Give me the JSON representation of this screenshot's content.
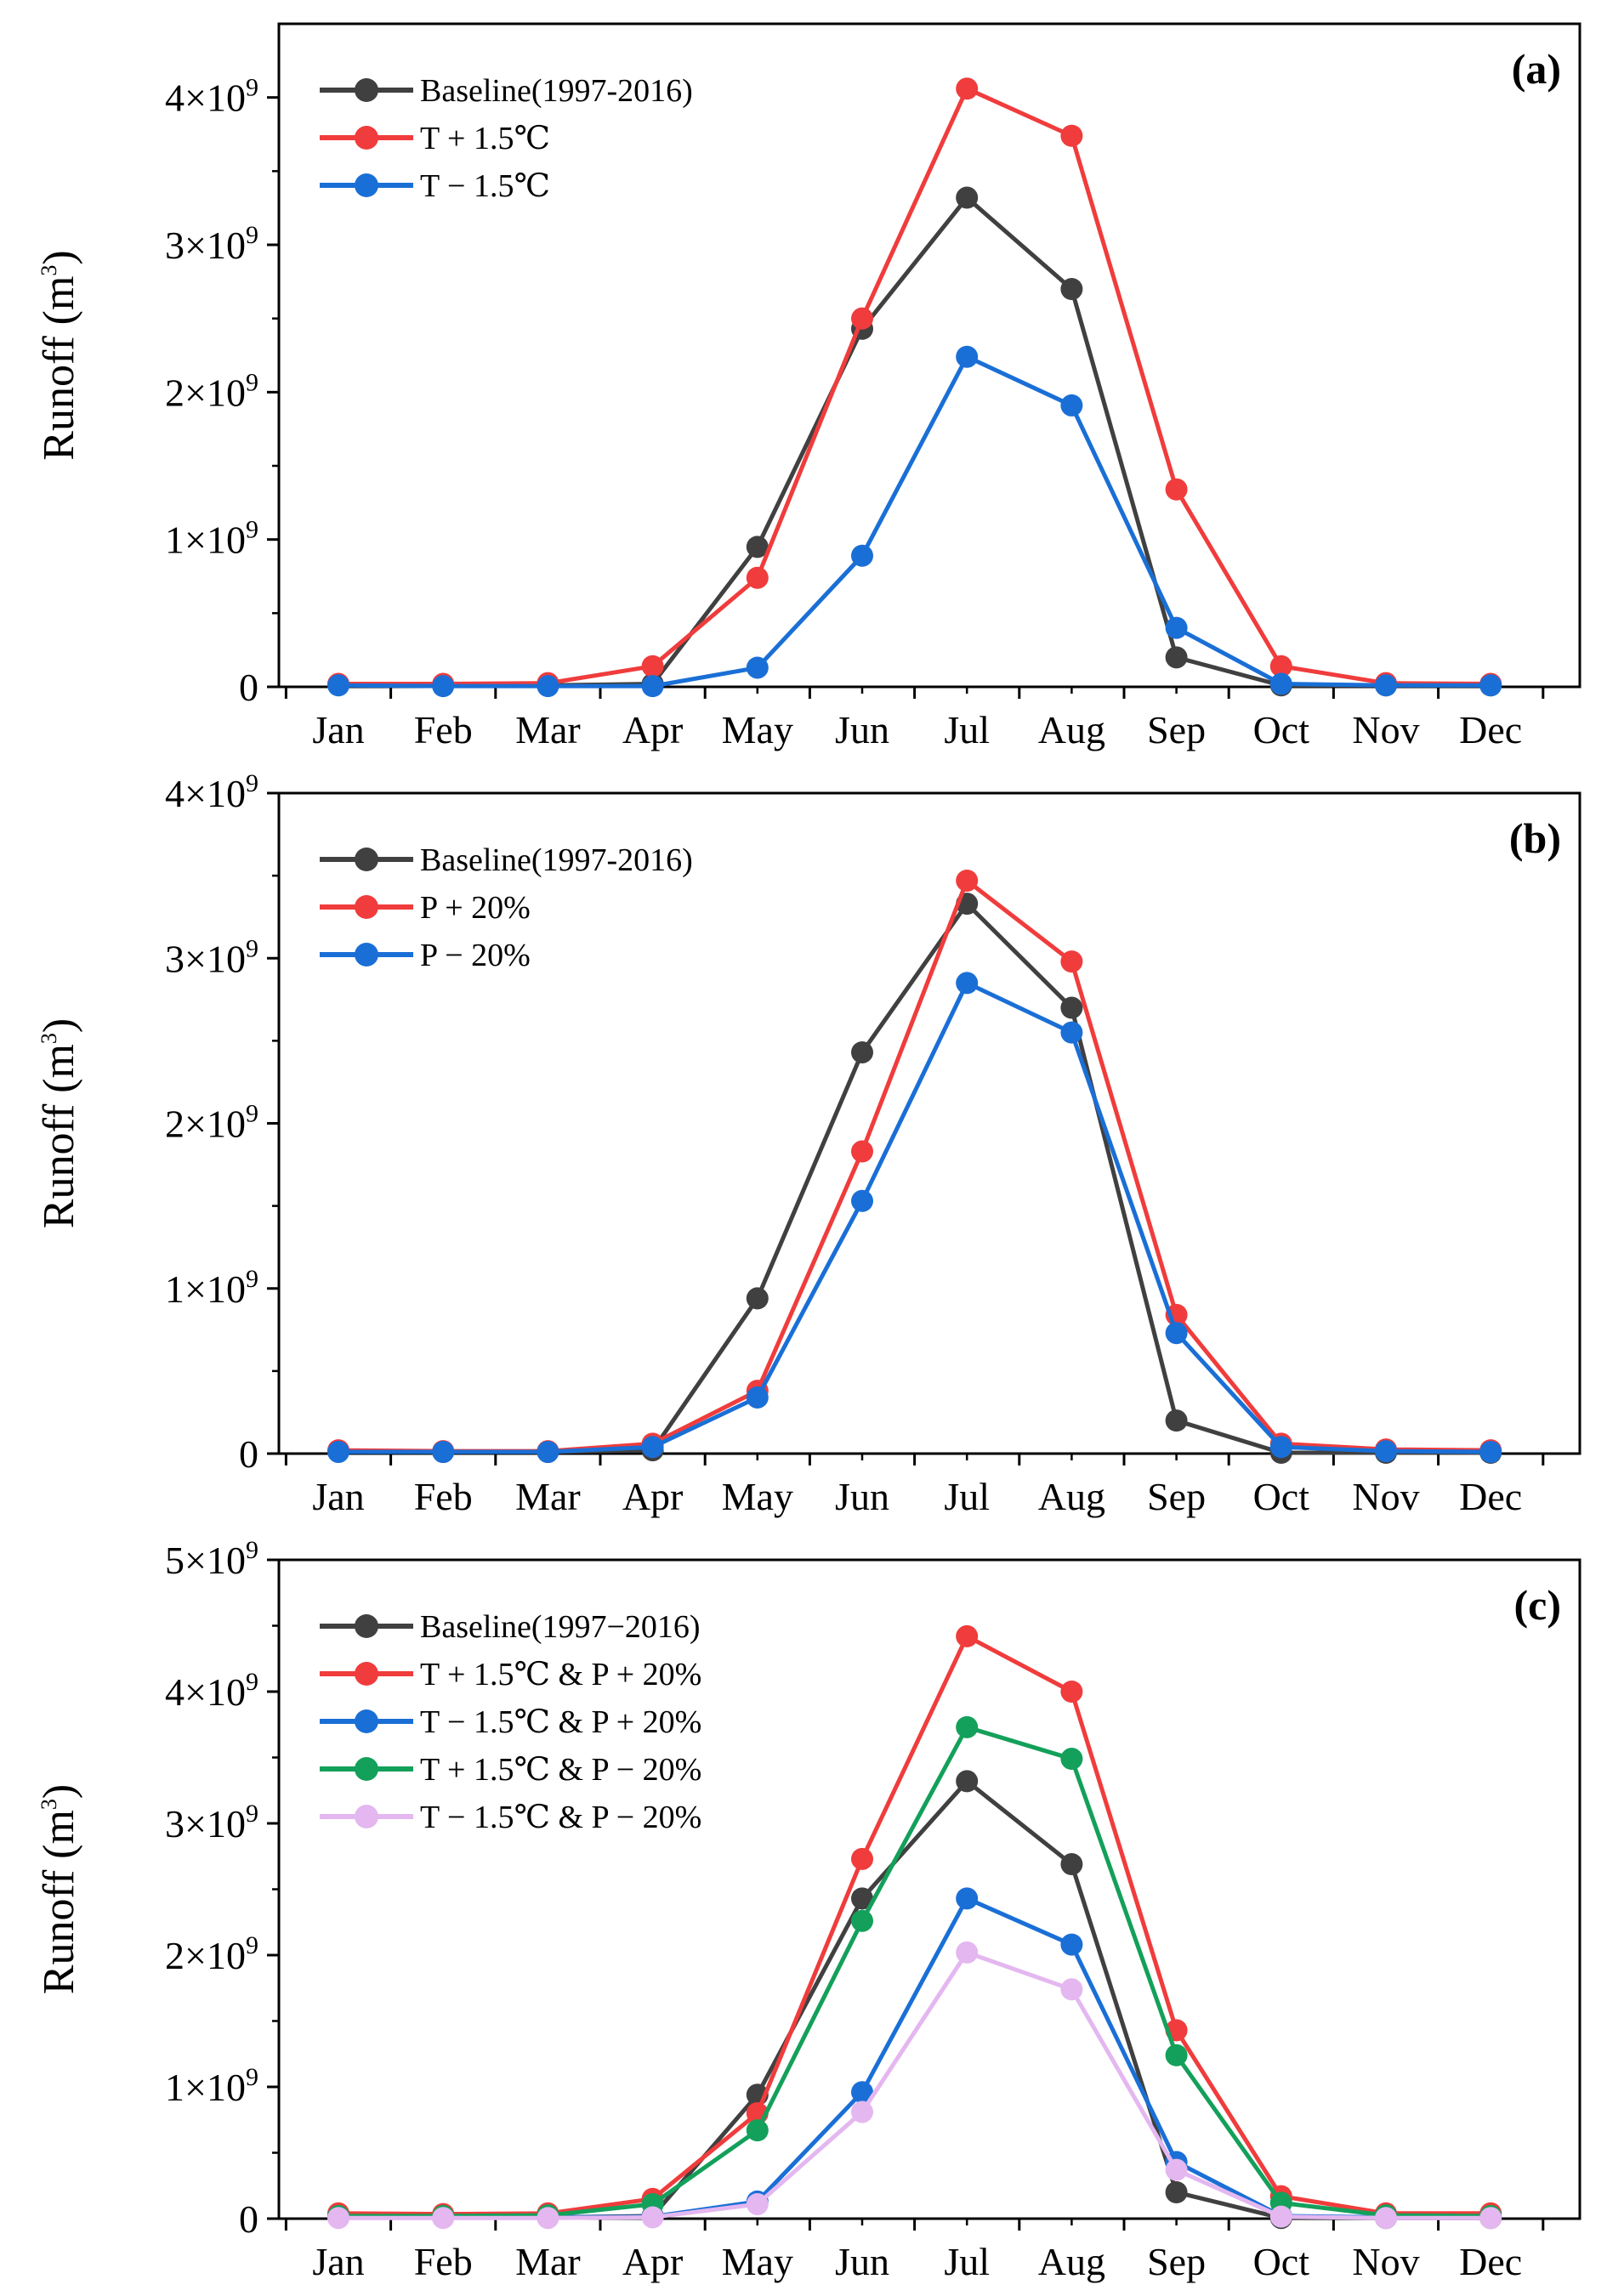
{
  "chart_data": [
    {
      "type": "line",
      "panel_label": "(a)",
      "ylabel": "Runoff (m3)",
      "ylim": [
        0,
        4500000000
      ],
      "yticks": [
        {
          "value": 0,
          "label": "0"
        },
        {
          "value": 1000000000,
          "label": "1×109"
        },
        {
          "value": 2000000000,
          "label": "2×109"
        },
        {
          "value": 3000000000,
          "label": "3×109"
        },
        {
          "value": 4000000000,
          "label": "4×109"
        }
      ],
      "categories": [
        "Jan",
        "Feb",
        "Mar",
        "Apr",
        "May",
        "Jun",
        "Jul",
        "Aug",
        "Sep",
        "Oct",
        "Nov",
        "Dec"
      ],
      "legend_position": "top-left",
      "series": [
        {
          "name": "Baseline(1997-2016)",
          "color": "#404040",
          "values": [
            15000000,
            10000000,
            10000000,
            20000000,
            950000000,
            2430000000,
            3320000000,
            2700000000,
            200000000,
            10000000,
            10000000,
            10000000
          ]
        },
        {
          "name": "T + 1.5℃",
          "color": "#f03c3c",
          "values": [
            20000000,
            20000000,
            25000000,
            140000000,
            740000000,
            2500000000,
            4060000000,
            3740000000,
            1340000000,
            140000000,
            25000000,
            20000000
          ]
        },
        {
          "name": "T − 1.5℃",
          "color": "#1a6fd6",
          "values": [
            10000000,
            5000000,
            5000000,
            5000000,
            130000000,
            890000000,
            2240000000,
            1910000000,
            400000000,
            20000000,
            10000000,
            10000000
          ]
        }
      ]
    },
    {
      "type": "line",
      "panel_label": "(b)",
      "ylabel": "Runoff (m3)",
      "ylim": [
        0,
        4000000000
      ],
      "yticks": [
        {
          "value": 0,
          "label": "0"
        },
        {
          "value": 1000000000,
          "label": "1×109"
        },
        {
          "value": 2000000000,
          "label": "2×109"
        },
        {
          "value": 3000000000,
          "label": "3×109"
        },
        {
          "value": 4000000000,
          "label": "4×109"
        }
      ],
      "categories": [
        "Jan",
        "Feb",
        "Mar",
        "Apr",
        "May",
        "Jun",
        "Jul",
        "Aug",
        "Sep",
        "Oct",
        "Nov",
        "Dec"
      ],
      "legend_position": "top-left",
      "series": [
        {
          "name": "Baseline(1997-2016)",
          "color": "#404040",
          "values": [
            15000000,
            10000000,
            10000000,
            20000000,
            940000000,
            2430000000,
            3330000000,
            2700000000,
            200000000,
            5000000,
            5000000,
            5000000
          ]
        },
        {
          "name": "P + 20%",
          "color": "#f03c3c",
          "values": [
            20000000,
            15000000,
            15000000,
            60000000,
            380000000,
            1830000000,
            3470000000,
            2980000000,
            840000000,
            60000000,
            25000000,
            20000000
          ]
        },
        {
          "name": "P − 20%",
          "color": "#1a6fd6",
          "values": [
            10000000,
            10000000,
            10000000,
            40000000,
            340000000,
            1530000000,
            2850000000,
            2550000000,
            730000000,
            40000000,
            15000000,
            10000000
          ]
        }
      ]
    },
    {
      "type": "line",
      "panel_label": "(c)",
      "ylabel": "Runoff (m3)",
      "ylim": [
        0,
        5000000000
      ],
      "yticks": [
        {
          "value": 0,
          "label": "0"
        },
        {
          "value": 1000000000,
          "label": "1×109"
        },
        {
          "value": 2000000000,
          "label": "2×109"
        },
        {
          "value": 3000000000,
          "label": "3×109"
        },
        {
          "value": 4000000000,
          "label": "4×109"
        },
        {
          "value": 5000000000,
          "label": "5×109"
        }
      ],
      "categories": [
        "Jan",
        "Feb",
        "Mar",
        "Apr",
        "May",
        "Jun",
        "Jul",
        "Aug",
        "Sep",
        "Oct",
        "Nov",
        "Dec"
      ],
      "legend_position": "top-left",
      "series": [
        {
          "name": "Baseline(1997−2016)",
          "color": "#404040",
          "values": [
            15000000,
            10000000,
            10000000,
            20000000,
            940000000,
            2430000000,
            3320000000,
            2690000000,
            200000000,
            5000000,
            5000000,
            5000000
          ]
        },
        {
          "name": "T + 1.5℃ & P + 20%",
          "color": "#f03c3c",
          "values": [
            40000000,
            35000000,
            40000000,
            150000000,
            800000000,
            2730000000,
            4420000000,
            4000000000,
            1430000000,
            170000000,
            40000000,
            40000000
          ]
        },
        {
          "name": "T − 1.5℃ & P + 20%",
          "color": "#1a6fd6",
          "values": [
            10000000,
            10000000,
            10000000,
            15000000,
            130000000,
            960000000,
            2430000000,
            2080000000,
            430000000,
            20000000,
            10000000,
            10000000
          ]
        },
        {
          "name": "T + 1.5℃ & P − 20%",
          "color": "#13a05a",
          "values": [
            20000000,
            20000000,
            25000000,
            110000000,
            670000000,
            2260000000,
            3730000000,
            3490000000,
            1240000000,
            120000000,
            25000000,
            20000000
          ]
        },
        {
          "name": "T − 1.5℃ & P − 20%",
          "color": "#e4b7f0",
          "values": [
            5000000,
            5000000,
            5000000,
            10000000,
            110000000,
            810000000,
            2020000000,
            1740000000,
            370000000,
            15000000,
            5000000,
            5000000
          ]
        }
      ]
    }
  ]
}
